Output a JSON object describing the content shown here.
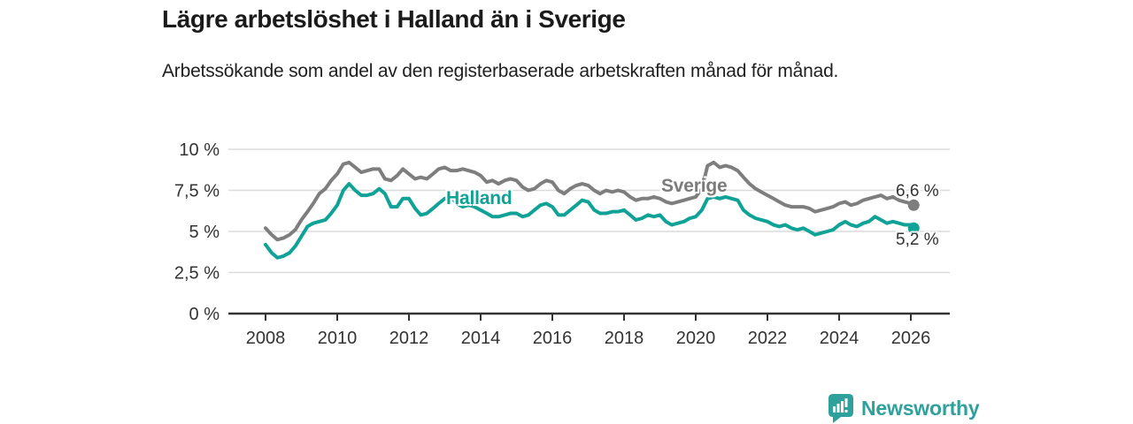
{
  "page": {
    "background": "#ffffff"
  },
  "branding": {
    "logo_text": "Newsworthy",
    "logo_color": "#2fa19c",
    "logo_icon": "bar-chart-speech-bubble"
  },
  "colors": {
    "title": "#1b1b1b",
    "text": "#333333",
    "grid": "#dcdcdc",
    "axis": "#333333",
    "sverige": "#7e7e7e",
    "halland": "#10a296"
  },
  "chart_data": {
    "type": "line",
    "title": "Lägre arbetslöshet i Halland än i Sverige",
    "subtitle": "Arbetssökande som andel av den registerbaserade arbetskraften månad för månad.",
    "grid": "horizontal",
    "legend": "inline-labels",
    "xlim": [
      2008,
      2026.3
    ],
    "ylim": [
      0,
      10.5
    ],
    "y_ticks": {
      "values": [
        10,
        7.5,
        5,
        2.5,
        0
      ],
      "labels": [
        "10 %",
        "7,5 %",
        "5 %",
        "2,5 %",
        "0 %"
      ]
    },
    "x_ticks": {
      "values": [
        2008,
        2010,
        2012,
        2014,
        2016,
        2018,
        2020,
        2022,
        2024,
        2026
      ],
      "labels": [
        "2008",
        "2010",
        "2012",
        "2014",
        "2016",
        "2018",
        "2020",
        "2022",
        "2024",
        "2026"
      ]
    },
    "x": [
      2008,
      2008.17,
      2008.33,
      2008.5,
      2008.67,
      2008.83,
      2009,
      2009.17,
      2009.33,
      2009.5,
      2009.67,
      2009.83,
      2010,
      2010.17,
      2010.33,
      2010.5,
      2010.67,
      2010.83,
      2011,
      2011.17,
      2011.33,
      2011.5,
      2011.67,
      2011.83,
      2012,
      2012.17,
      2012.33,
      2012.5,
      2012.67,
      2012.83,
      2013,
      2013.17,
      2013.33,
      2013.5,
      2013.67,
      2013.83,
      2014,
      2014.17,
      2014.33,
      2014.5,
      2014.67,
      2014.83,
      2015,
      2015.17,
      2015.33,
      2015.5,
      2015.67,
      2015.83,
      2016,
      2016.17,
      2016.33,
      2016.5,
      2016.67,
      2016.83,
      2017,
      2017.17,
      2017.33,
      2017.5,
      2017.67,
      2017.83,
      2018,
      2018.17,
      2018.33,
      2018.5,
      2018.67,
      2018.83,
      2019,
      2019.17,
      2019.33,
      2019.5,
      2019.67,
      2019.83,
      2020,
      2020.17,
      2020.33,
      2020.5,
      2020.67,
      2020.83,
      2021,
      2021.17,
      2021.33,
      2021.5,
      2021.67,
      2021.83,
      2022,
      2022.17,
      2022.33,
      2022.5,
      2022.67,
      2022.83,
      2023,
      2023.17,
      2023.33,
      2023.5,
      2023.67,
      2023.83,
      2024,
      2024.17,
      2024.33,
      2024.5,
      2024.67,
      2024.83,
      2025,
      2025.17,
      2025.33,
      2025.5,
      2025.67,
      2025.83,
      2026,
      2026.08
    ],
    "series": [
      {
        "name": "Sverige",
        "color": "#7e7e7e",
        "end_label": "6,6 %",
        "final_value": 6.6,
        "values": [
          5.2,
          4.8,
          4.5,
          4.6,
          4.8,
          5.1,
          5.7,
          6.2,
          6.7,
          7.3,
          7.6,
          8.1,
          8.5,
          9.1,
          9.2,
          8.9,
          8.6,
          8.7,
          8.8,
          8.8,
          8.2,
          8.1,
          8.4,
          8.8,
          8.5,
          8.2,
          8.3,
          8.2,
          8.5,
          8.8,
          8.9,
          8.7,
          8.7,
          8.8,
          8.7,
          8.6,
          8.4,
          8.0,
          8.1,
          7.9,
          8.1,
          8.2,
          8.1,
          7.7,
          7.5,
          7.6,
          7.9,
          8.1,
          8.0,
          7.5,
          7.3,
          7.6,
          7.8,
          7.9,
          7.8,
          7.5,
          7.3,
          7.5,
          7.4,
          7.5,
          7.4,
          7.1,
          6.9,
          7.0,
          7.0,
          7.1,
          7.0,
          6.8,
          6.7,
          6.8,
          6.9,
          7.0,
          7.1,
          7.6,
          9.0,
          9.2,
          8.9,
          9.0,
          8.9,
          8.7,
          8.3,
          7.9,
          7.6,
          7.4,
          7.2,
          7.0,
          6.8,
          6.6,
          6.5,
          6.5,
          6.5,
          6.4,
          6.2,
          6.3,
          6.4,
          6.5,
          6.7,
          6.8,
          6.6,
          6.7,
          6.9,
          7.0,
          7.1,
          7.2,
          7.0,
          7.1,
          6.9,
          6.8,
          6.7,
          6.6
        ]
      },
      {
        "name": "Halland",
        "color": "#10a296",
        "end_label": "5,2 %",
        "final_value": 5.2,
        "values": [
          4.2,
          3.7,
          3.4,
          3.5,
          3.7,
          4.1,
          4.7,
          5.3,
          5.5,
          5.6,
          5.7,
          6.1,
          6.6,
          7.5,
          7.9,
          7.5,
          7.2,
          7.2,
          7.3,
          7.6,
          7.3,
          6.5,
          6.5,
          7.0,
          7.0,
          6.4,
          6.0,
          6.1,
          6.4,
          6.7,
          7.0,
          7.1,
          6.7,
          6.5,
          6.6,
          6.5,
          6.3,
          6.1,
          5.9,
          5.9,
          6.0,
          6.1,
          6.1,
          5.9,
          6.0,
          6.3,
          6.6,
          6.7,
          6.5,
          6.0,
          6.0,
          6.3,
          6.6,
          6.9,
          6.8,
          6.3,
          6.1,
          6.1,
          6.2,
          6.2,
          6.3,
          6.0,
          5.7,
          5.8,
          6.0,
          5.9,
          6.0,
          5.6,
          5.4,
          5.5,
          5.6,
          5.8,
          5.9,
          6.3,
          7.0,
          7.1,
          7.0,
          7.1,
          7.0,
          6.9,
          6.3,
          6.0,
          5.8,
          5.7,
          5.6,
          5.4,
          5.3,
          5.4,
          5.2,
          5.1,
          5.2,
          5.0,
          4.8,
          4.9,
          5.0,
          5.1,
          5.4,
          5.6,
          5.4,
          5.3,
          5.5,
          5.6,
          5.9,
          5.7,
          5.5,
          5.6,
          5.5,
          5.4,
          5.4,
          5.2
        ]
      }
    ]
  }
}
